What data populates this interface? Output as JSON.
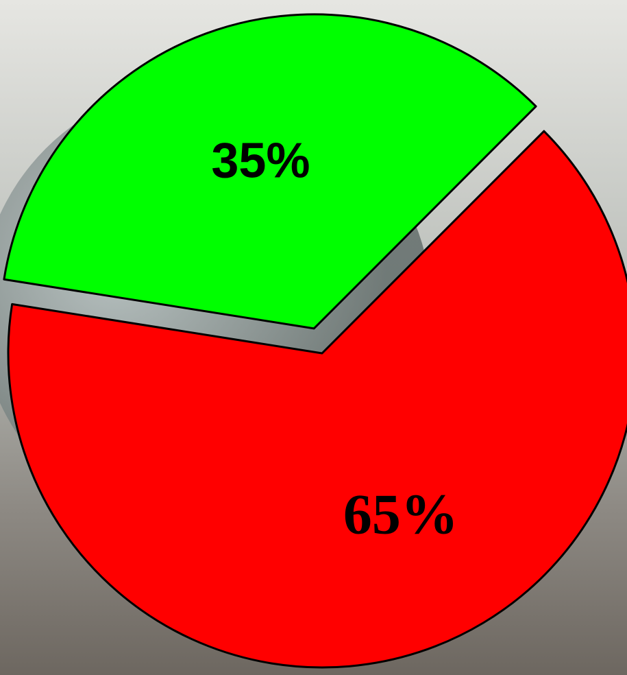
{
  "chart_data": {
    "type": "pie",
    "values": [
      35,
      65
    ],
    "value_labels": [
      "35%",
      "65%"
    ],
    "colors": [
      "#00ff00",
      "#ff0000"
    ]
  }
}
